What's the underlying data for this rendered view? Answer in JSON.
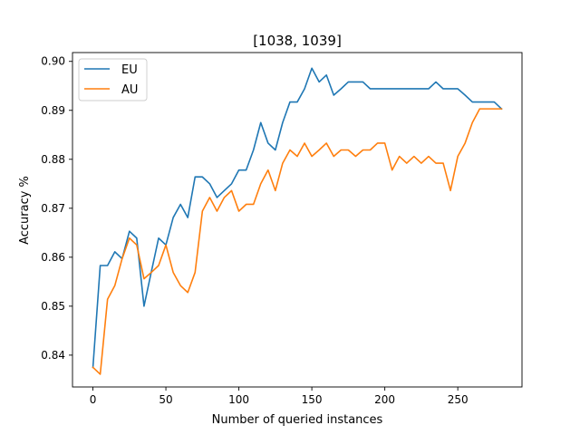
{
  "chart_data": {
    "type": "line",
    "title": "[1038, 1039]",
    "xlabel": "Number of queried instances",
    "ylabel": "Accuracy %",
    "xlim": [
      -14,
      294
    ],
    "ylim": [
      0.8335,
      0.9018
    ],
    "xticks": [
      0,
      50,
      100,
      150,
      200,
      250
    ],
    "yticks": [
      0.84,
      0.85,
      0.86,
      0.87,
      0.88,
      0.89,
      0.9
    ],
    "ytick_labels": [
      "0.84",
      "0.85",
      "0.86",
      "0.87",
      "0.88",
      "0.89",
      "0.90"
    ],
    "legend_position": "upper-left",
    "grid": false,
    "x": [
      0,
      5,
      10,
      15,
      20,
      25,
      30,
      35,
      40,
      45,
      50,
      55,
      60,
      65,
      70,
      75,
      80,
      85,
      90,
      95,
      100,
      105,
      110,
      115,
      120,
      125,
      130,
      135,
      140,
      145,
      150,
      155,
      160,
      165,
      170,
      175,
      180,
      185,
      190,
      195,
      200,
      205,
      210,
      215,
      220,
      225,
      230,
      235,
      240,
      245,
      250,
      255,
      260,
      265,
      270,
      275,
      280
    ],
    "series": [
      {
        "name": "EU",
        "color": "#1f77b4",
        "values": [
          0.8375,
          0.8583,
          0.8583,
          0.8611,
          0.8597,
          0.8653,
          0.8639,
          0.85,
          0.857,
          0.8639,
          0.8625,
          0.8681,
          0.8708,
          0.8681,
          0.8764,
          0.8764,
          0.875,
          0.8722,
          0.8736,
          0.875,
          0.8778,
          0.8778,
          0.8819,
          0.8875,
          0.8833,
          0.8819,
          0.8875,
          0.8917,
          0.8917,
          0.8944,
          0.8986,
          0.8958,
          0.8972,
          0.8931,
          0.8944,
          0.8958,
          0.8958,
          0.8958,
          0.8944,
          0.8944,
          0.8944,
          0.8944,
          0.8944,
          0.8944,
          0.8944,
          0.8944,
          0.8944,
          0.8958,
          0.8944,
          0.8944,
          0.8944,
          0.8931,
          0.8917,
          0.8917,
          0.8917,
          0.8917,
          0.8903
        ]
      },
      {
        "name": "AU",
        "color": "#ff7f0e",
        "values": [
          0.8375,
          0.8361,
          0.8514,
          0.8542,
          0.8597,
          0.8639,
          0.8625,
          0.8556,
          0.8569,
          0.8583,
          0.8625,
          0.8569,
          0.8542,
          0.8528,
          0.8569,
          0.8694,
          0.8722,
          0.8694,
          0.8722,
          0.8736,
          0.8694,
          0.8708,
          0.8708,
          0.875,
          0.8778,
          0.8736,
          0.8792,
          0.8819,
          0.8806,
          0.8833,
          0.8806,
          0.8819,
          0.8833,
          0.8806,
          0.8819,
          0.8819,
          0.8806,
          0.8819,
          0.8819,
          0.8833,
          0.8833,
          0.8778,
          0.8806,
          0.8792,
          0.8806,
          0.8792,
          0.8806,
          0.8792,
          0.8792,
          0.8736,
          0.8806,
          0.8833,
          0.8875,
          0.8903,
          0.8903,
          0.8903,
          0.8903
        ]
      }
    ]
  }
}
